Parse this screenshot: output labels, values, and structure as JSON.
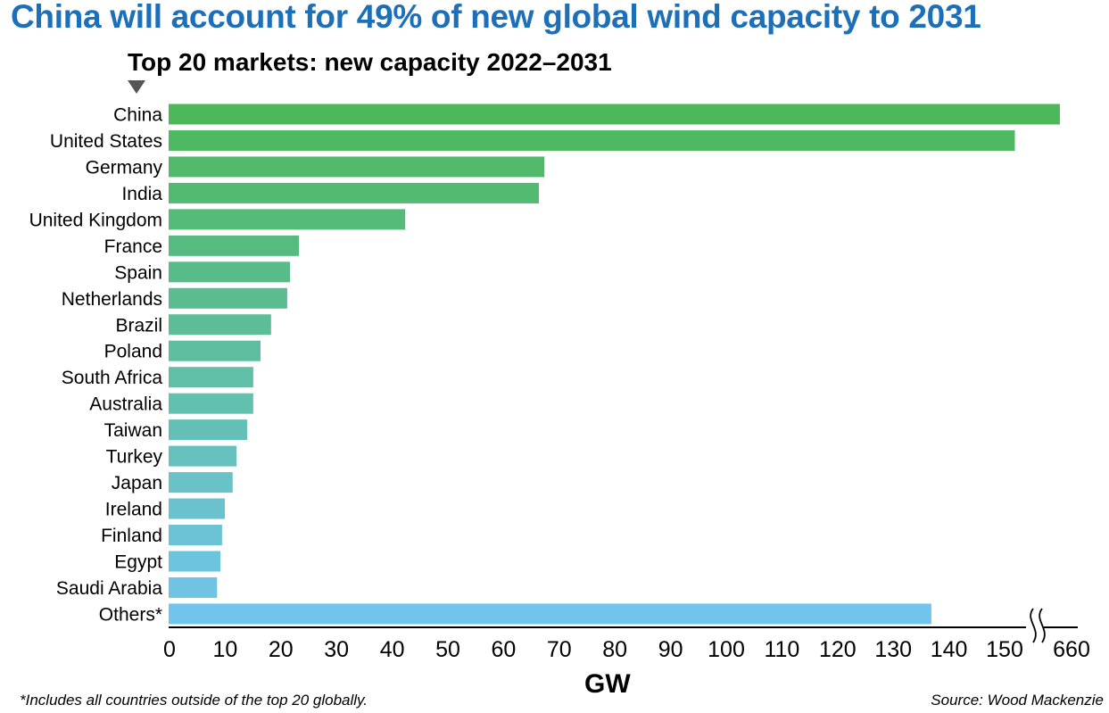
{
  "title": "China will account for 49% of new global wind capacity to 2031",
  "footnote": "*Includes all countries outside of the top 20 globally.",
  "source": "Source: Wood Mackenzie",
  "chart_data": {
    "type": "bar",
    "orientation": "horizontal",
    "title": "Top 20 markets: new capacity 2022–2031",
    "xlabel": "GW",
    "ylabel": "",
    "categories": [
      "China",
      "United States",
      "Germany",
      "India",
      "United Kingdom",
      "France",
      "Spain",
      "Netherlands",
      "Brazil",
      "Poland",
      "South Africa",
      "Australia",
      "Taiwan",
      "Turkey",
      "Japan",
      "Ireland",
      "Finland",
      "Egypt",
      "Saudi Arabia",
      "Others*"
    ],
    "values": [
      645,
      152,
      67.5,
      66.5,
      42.5,
      23.4,
      21.8,
      21.3,
      18.4,
      16.5,
      15.2,
      15.2,
      14.1,
      12.2,
      11.5,
      10.1,
      9.6,
      9.3,
      8.7,
      137
    ],
    "xticks": [
      "0",
      "10",
      "20",
      "30",
      "40",
      "50",
      "60",
      "70",
      "80",
      "90",
      "100",
      "110",
      "120",
      "130",
      "140",
      "150",
      "660"
    ],
    "xlim": [
      0,
      660
    ],
    "axis_break": [
      155,
      655
    ],
    "grid": false,
    "legend": "none",
    "colors": {
      "start": "#4db85a",
      "end": "#71c5ec",
      "title": "#1d70b8"
    }
  }
}
